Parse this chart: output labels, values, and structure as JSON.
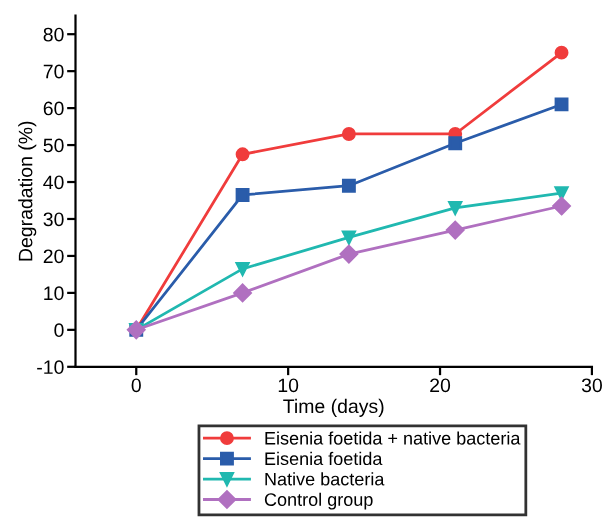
{
  "chart_data": {
    "type": "line",
    "xlabel": "Time (days)",
    "ylabel": "Degradation (%)",
    "x": [
      0,
      7,
      14,
      21,
      28
    ],
    "series": [
      {
        "name": "Eisenia foetida + native bacteria",
        "color": "#f03c3c",
        "marker": "circle",
        "values": [
          0,
          47.5,
          53,
          53,
          75
        ]
      },
      {
        "name": "Eisenia foetida",
        "color": "#2a5caa",
        "marker": "square",
        "values": [
          0,
          36.5,
          39,
          50.5,
          61
        ]
      },
      {
        "name": "Native bacteria",
        "color": "#20b8b0",
        "marker": "triangle",
        "values": [
          0,
          16.5,
          25,
          33,
          37
        ]
      },
      {
        "name": "Control group",
        "color": "#b070c0",
        "marker": "diamond",
        "values": [
          0,
          10,
          20.5,
          27,
          33.5
        ]
      }
    ],
    "xlim": [
      -4,
      30
    ],
    "xticks": [
      0,
      10,
      20,
      30
    ],
    "ylim": [
      -10,
      85
    ],
    "yticks": [
      -10,
      0,
      10,
      20,
      30,
      40,
      50,
      60,
      70,
      80
    ],
    "grid": false,
    "legend": "bottom",
    "line_style": "solid"
  }
}
